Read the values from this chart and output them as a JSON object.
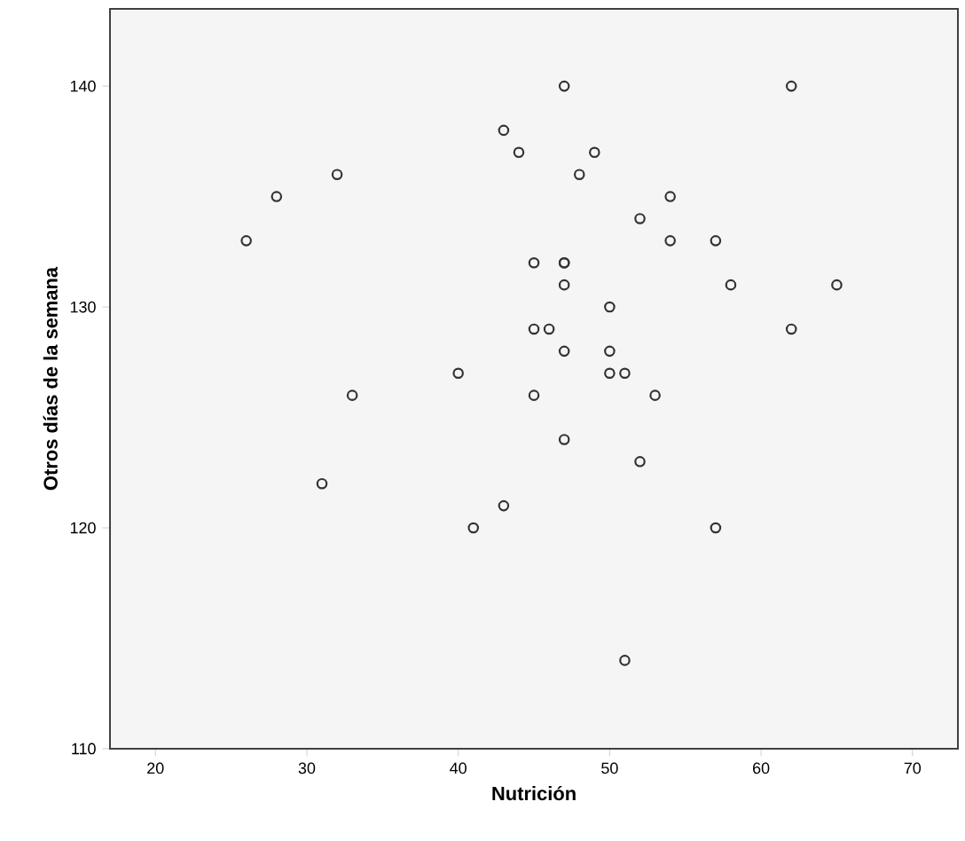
{
  "chart_data": {
    "type": "scatter",
    "xlabel": "Nutrición",
    "ylabel": "Otros días de la semana",
    "series": [
      {
        "color": "#333333",
        "x": [
          26,
          28,
          32,
          33,
          31,
          40,
          41,
          43,
          47,
          62,
          43,
          44,
          49,
          48,
          54,
          52,
          54,
          57,
          45,
          47,
          47,
          47,
          58,
          65,
          50,
          45,
          46,
          62,
          47,
          50,
          50,
          51,
          45,
          53,
          47,
          52,
          57,
          51
        ],
        "values": [
          133,
          135,
          136,
          126,
          122,
          127,
          120,
          121,
          140,
          140,
          138,
          137,
          137,
          136,
          135,
          134,
          133,
          133,
          132,
          132,
          132,
          131,
          131,
          131,
          130,
          129,
          129,
          129,
          128,
          128,
          127,
          127,
          126,
          126,
          124,
          123,
          120,
          114
        ]
      }
    ],
    "marker": "circle",
    "grid": false,
    "xlim": [
      17,
      73
    ],
    "ylim": [
      110,
      143.5
    ],
    "xticks": [
      20,
      30,
      40,
      50,
      60,
      70
    ],
    "yticks": [
      110,
      120,
      130,
      140
    ]
  }
}
